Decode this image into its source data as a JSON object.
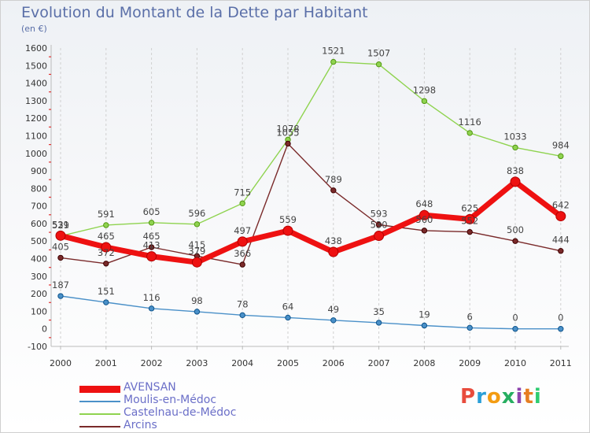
{
  "header": {
    "title": "Evolution du Montant de la Dette par Habitant",
    "unit": "(en €)"
  },
  "logo": {
    "text": "Proxiti",
    "colors": [
      "#e84c3d",
      "#2a9fd8",
      "#f39c12",
      "#27ae60",
      "#8e44ad",
      "#e67e22",
      "#2ecc71"
    ]
  },
  "chart_data": {
    "type": "line",
    "title": "Evolution du Montant de la Dette par Habitant",
    "ylabel": "(en €)",
    "xlabel": "",
    "ylim": [
      -100,
      1600
    ],
    "y_ticks": [
      -100,
      0,
      100,
      200,
      300,
      400,
      500,
      600,
      700,
      800,
      900,
      1000,
      1100,
      1200,
      1300,
      1400,
      1500,
      1600
    ],
    "categories": [
      "2000",
      "2001",
      "2002",
      "2003",
      "2004",
      "2005",
      "2006",
      "2007",
      "2008",
      "2009",
      "2010",
      "2011"
    ],
    "grid": "vertical dashed",
    "legend_position": "bottom-left",
    "series": [
      {
        "name": "AVENSAN",
        "color": "#ee1111",
        "values": [
          531,
          465,
          413,
          379,
          497,
          559,
          438,
          530,
          648,
          625,
          838,
          642
        ]
      },
      {
        "name": "Moulis-en-Médoc",
        "color": "#4a90c8",
        "values": [
          187,
          151,
          116,
          98,
          78,
          64,
          49,
          35,
          19,
          6,
          0,
          0
        ]
      },
      {
        "name": "Castelnau-de-Médoc",
        "color": "#8fd34f",
        "values": [
          529,
          591,
          605,
          596,
          715,
          1078,
          1521,
          1507,
          1298,
          1116,
          1033,
          984
        ]
      },
      {
        "name": "Arcins",
        "color": "#7a2a2a",
        "values": [
          405,
          372,
          465,
          415,
          366,
          1055,
          789,
          593,
          560,
          552,
          500,
          444
        ]
      }
    ]
  }
}
